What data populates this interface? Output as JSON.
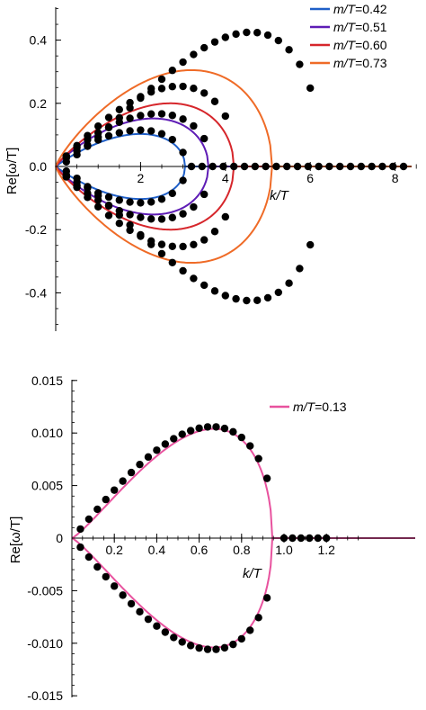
{
  "chart_data": [
    {
      "type": "scatter",
      "title": "",
      "xlabel": "k/T",
      "ylabel": "Re[ω/T]",
      "xlim": [
        0,
        8.6
      ],
      "ylim": [
        -0.5,
        0.5
      ],
      "xticks": [
        "2",
        "4",
        "6",
        "8"
      ],
      "xtick_values": [
        2,
        4,
        6,
        8
      ],
      "yticks": [
        "0.4",
        "0.2",
        "0.0",
        "-0.2",
        "-0.4"
      ],
      "ytick_values": [
        0.4,
        0.2,
        0.0,
        -0.2,
        -0.4
      ],
      "legend_position": "top-right",
      "grid": false,
      "series": [
        {
          "name": "m/T=0.42",
          "name_italic": "m/T",
          "name_value": "=0.42",
          "color": "#1f5fc8",
          "kmax": 3.05,
          "peak": 0.103,
          "peak_k": 2.0
        },
        {
          "name": "m/T=0.51",
          "name_italic": "m/T",
          "name_value": "=0.51",
          "color": "#5e1cb5",
          "kmax": 3.6,
          "peak": 0.152,
          "peak_k": 2.3
        },
        {
          "name": "m/T=0.60",
          "name_italic": "m/T",
          "name_value": "=0.60",
          "color": "#d6262b",
          "kmax": 4.2,
          "peak": 0.2,
          "peak_k": 2.7
        },
        {
          "name": "m/T=0.73",
          "name_italic": "m/T",
          "name_value": "=0.73",
          "color": "#ef6b27",
          "kmax": 5.1,
          "peak": 0.305,
          "peak_k": 3.2
        }
      ],
      "dot_sets": [
        {
          "kmax": 3.0,
          "peak": 0.115,
          "peak_k": 2.0,
          "step": 0.25
        },
        {
          "kmax": 3.6,
          "peak": 0.167,
          "peak_k": 2.4,
          "step": 0.25
        },
        {
          "kmax": 4.2,
          "peak": 0.254,
          "peak_k": 2.9,
          "step": 0.25
        },
        {
          "kmax": 6.2,
          "peak": 0.425,
          "peak_k": 4.6,
          "step": 0.25
        }
      ],
      "axis_dots": {
        "kmin": 3.2,
        "kmax": 8.3,
        "step": 0.25
      }
    },
    {
      "type": "scatter",
      "title": "",
      "xlabel": "k/T",
      "ylabel": "Re[ω/T]",
      "xlim": [
        0,
        1.4
      ],
      "ylim": [
        -0.015,
        0.015
      ],
      "xticks": [
        "0.2",
        "0.4",
        "0.6",
        "0.8",
        "1.0",
        "1.2"
      ],
      "xtick_values": [
        0.2,
        0.4,
        0.6,
        0.8,
        1.0,
        1.2
      ],
      "yticks": [
        "0.015",
        "0.010",
        "0.005",
        "0",
        "-0.005",
        "-0.010",
        "-0.015"
      ],
      "ytick_values": [
        0.015,
        0.01,
        0.005,
        0,
        -0.005,
        -0.01,
        -0.015
      ],
      "legend_position": "top-right",
      "grid": false,
      "series": [
        {
          "name": "m/T=0.13",
          "name_italic": "m/T",
          "name_value": "=0.13",
          "color": "#e8529e",
          "kmax": 0.945,
          "peak": 0.0104,
          "peak_k": 0.67
        }
      ],
      "dot_sets": [
        {
          "kmax": 0.95,
          "peak": 0.0106,
          "peak_k": 0.66,
          "step": 0.04
        }
      ],
      "axis_dots": {
        "kmin": 1.0,
        "kmax": 1.2,
        "step": 0.04
      }
    }
  ]
}
